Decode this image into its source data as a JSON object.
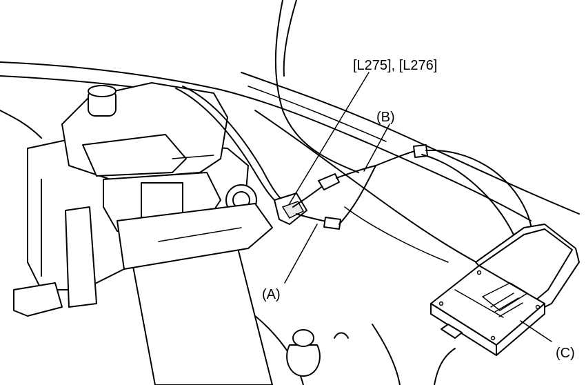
{
  "diagram": {
    "labels": {
      "connector": "[L275], [L276]",
      "a": "(A)",
      "b": "(B)",
      "c": "(C)"
    },
    "colors": {
      "stroke": "#000000",
      "background": "#ffffff"
    }
  }
}
